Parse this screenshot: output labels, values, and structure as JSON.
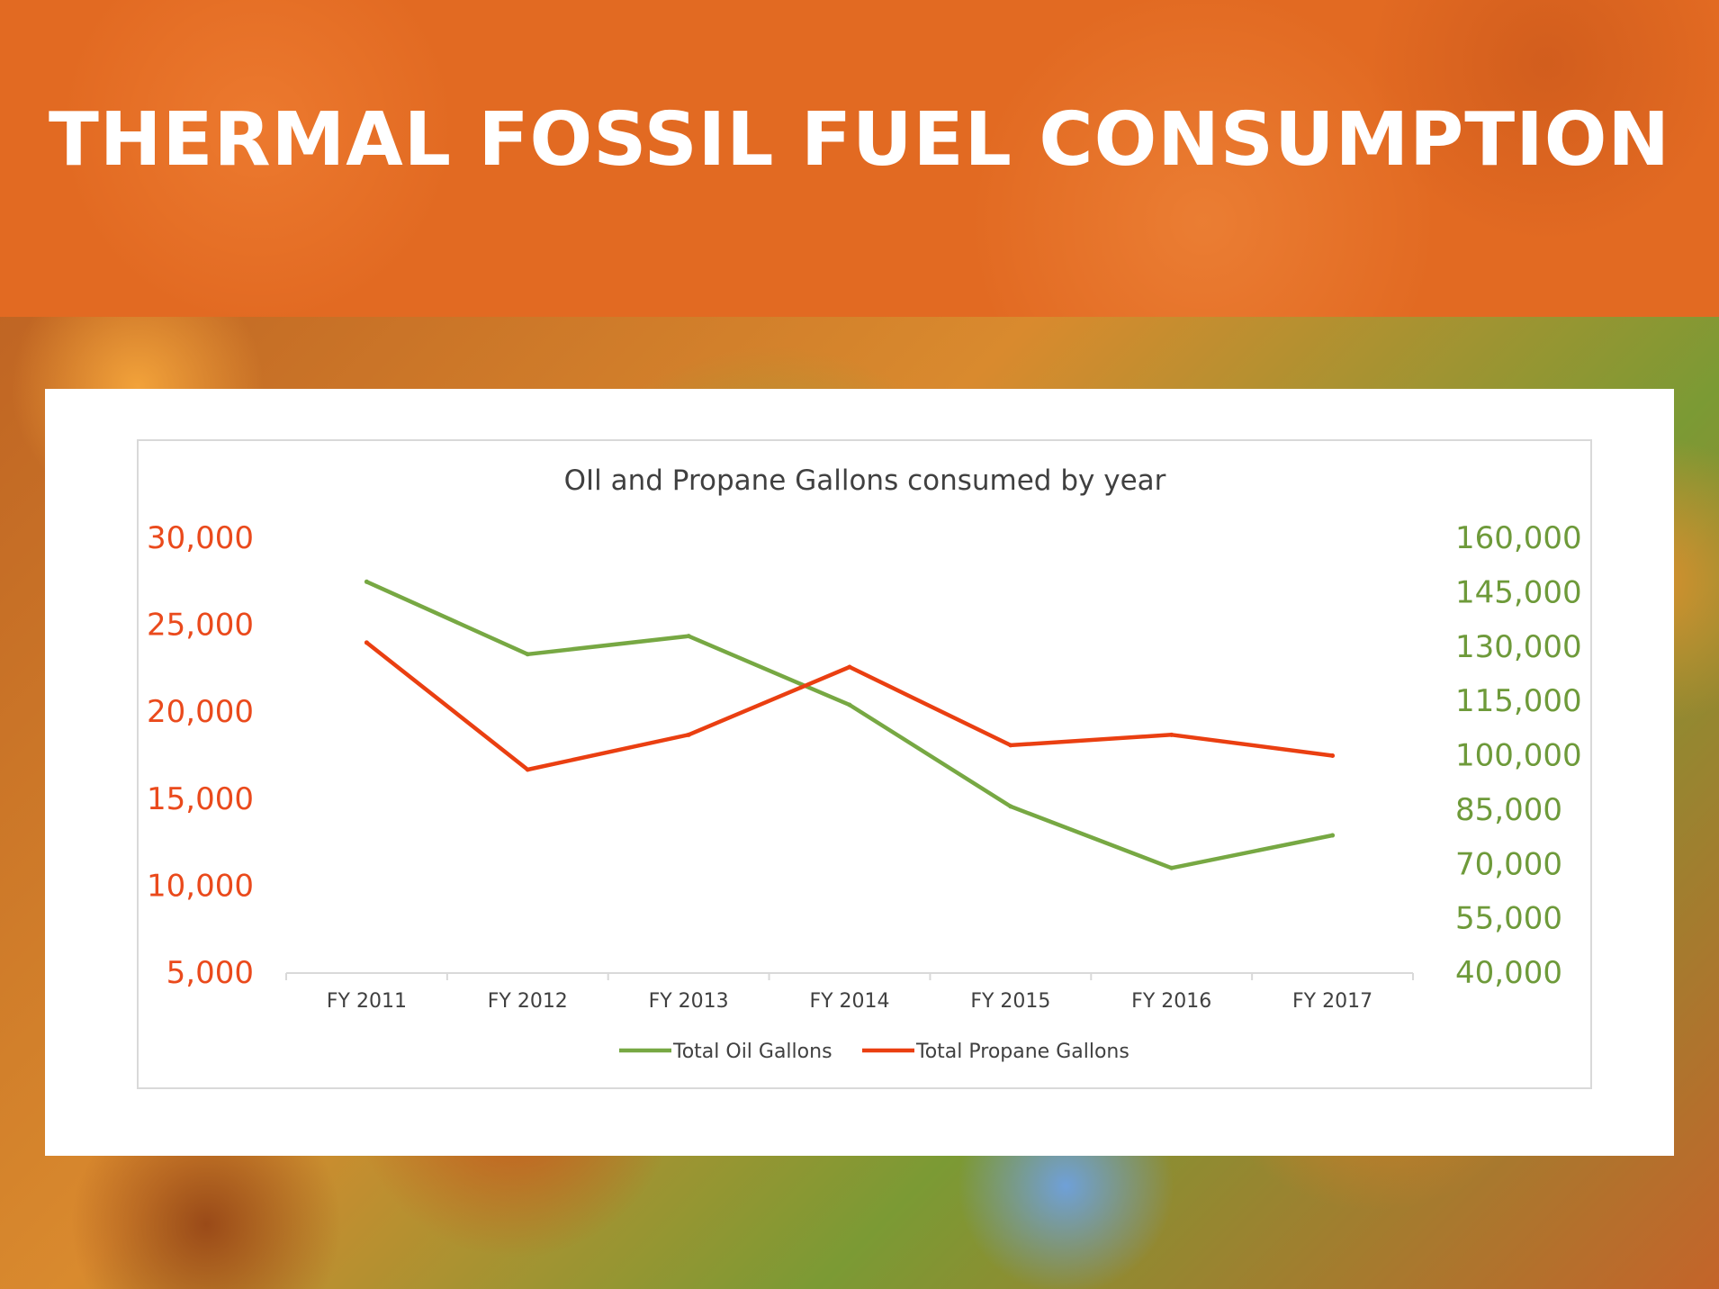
{
  "slide": {
    "title": "THERMAL FOSSIL FUEL CONSUMPTION"
  },
  "colors": {
    "banner": "#e26a22",
    "oil_series": "#77a843",
    "propane_series": "#ea3f11",
    "left_axis_text": "#ea4a1c",
    "right_axis_text": "#6e9a3a",
    "title_text": "#404040",
    "category_text": "#404040"
  },
  "chart_data": {
    "type": "line",
    "title": "OIl and Propane Gallons consumed by year",
    "categories": [
      "FY 2011",
      "FY 2012",
      "FY 2013",
      "FY 2014",
      "FY 2015",
      "FY 2016",
      "FY 2017"
    ],
    "series": [
      {
        "name": "Total Oil Gallons",
        "axis": "right",
        "color": "#77a843",
        "values": [
          148000,
          128000,
          133000,
          114000,
          86000,
          69000,
          78000
        ]
      },
      {
        "name": "Total Propane Gallons",
        "axis": "left",
        "color": "#ea3f11",
        "values": [
          24000,
          16700,
          18700,
          22600,
          18100,
          18700,
          17500
        ]
      }
    ],
    "left_axis": {
      "ylim": [
        5000,
        30000
      ],
      "ticks": [
        "30,000",
        "25,000",
        "20,000",
        "15,000",
        "10,000",
        "5,000"
      ],
      "tick_values": [
        30000,
        25000,
        20000,
        15000,
        10000,
        5000
      ]
    },
    "right_axis": {
      "ylim": [
        40000,
        160000
      ],
      "ticks": [
        "160,000",
        "145,000",
        "130,000",
        "115,000",
        "100,000",
        "85,000",
        "70,000",
        "55,000",
        "40,000"
      ],
      "tick_values": [
        160000,
        145000,
        130000,
        115000,
        100000,
        85000,
        70000,
        55000,
        40000
      ]
    },
    "grid": false,
    "legend_position": "bottom"
  }
}
